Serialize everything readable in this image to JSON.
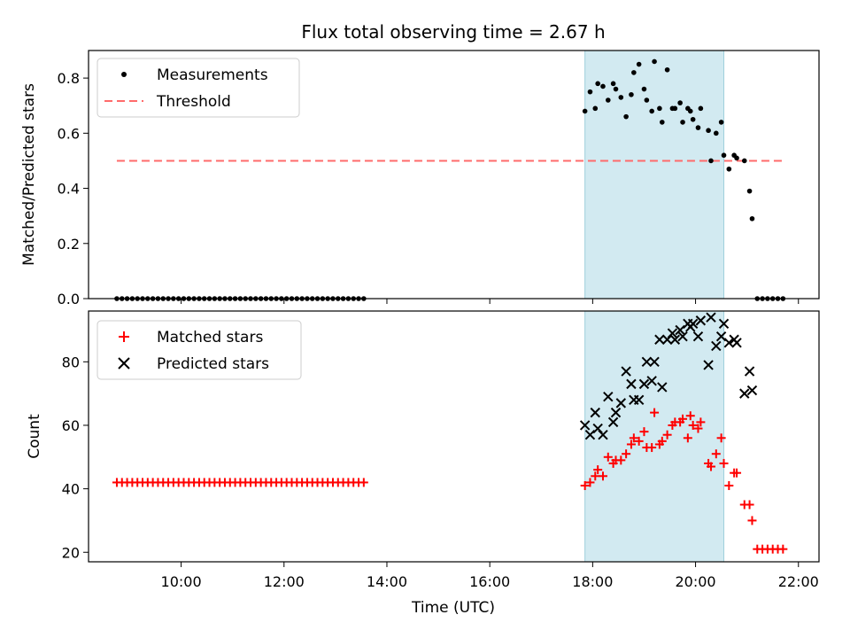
{
  "title": "Flux total observing time = 2.67 h",
  "xlabel": "Time (UTC)",
  "x_ticks": [
    "10:00",
    "12:00",
    "14:00",
    "16:00",
    "18:00",
    "20:00",
    "22:00"
  ],
  "x_tick_hours": [
    10,
    12,
    14,
    16,
    18,
    20,
    22
  ],
  "x_range_hours": [
    8.2,
    22.4
  ],
  "shaded_interval_hours": [
    17.85,
    20.55
  ],
  "colors": {
    "shade": "#add8e6",
    "threshold": "#ff6b6b",
    "matched": "#ff0000",
    "predicted": "#000000",
    "measurement": "#000000"
  },
  "chart_data": [
    {
      "type": "scatter",
      "ylabel": "Matched/Predicted stars",
      "ylim": [
        0,
        0.9
      ],
      "y_ticks": [
        "0.0",
        "0.2",
        "0.4",
        "0.6",
        "0.8"
      ],
      "y_tick_values": [
        0,
        0.2,
        0.4,
        0.6,
        0.8
      ],
      "legend": {
        "placement": "top-left",
        "entries": [
          "Measurements",
          "Threshold"
        ]
      },
      "threshold": {
        "name": "Threshold",
        "y": 0.5,
        "x_range_hours": [
          8.75,
          21.75
        ]
      },
      "series": [
        {
          "name": "Measurements",
          "x": [
            8.75,
            8.85,
            8.95,
            9.05,
            9.15,
            9.25,
            9.35,
            9.45,
            9.55,
            9.65,
            9.75,
            9.85,
            9.95,
            10.05,
            10.15,
            10.25,
            10.35,
            10.45,
            10.55,
            10.65,
            10.75,
            10.85,
            10.95,
            11.05,
            11.15,
            11.25,
            11.35,
            11.45,
            11.55,
            11.65,
            11.75,
            11.85,
            11.95,
            12.05,
            12.15,
            12.25,
            12.35,
            12.45,
            12.55,
            12.65,
            12.75,
            12.85,
            12.95,
            13.05,
            13.15,
            13.25,
            13.35,
            13.45,
            13.55,
            17.85,
            17.95,
            18.05,
            18.1,
            18.2,
            18.3,
            18.4,
            18.45,
            18.55,
            18.65,
            18.75,
            18.8,
            18.9,
            19.0,
            19.05,
            19.15,
            19.2,
            19.3,
            19.35,
            19.45,
            19.55,
            19.6,
            19.7,
            19.75,
            19.85,
            19.9,
            19.95,
            20.05,
            20.1,
            20.25,
            20.3,
            20.4,
            20.5,
            20.55,
            20.65,
            20.75,
            20.8,
            20.95,
            21.05,
            21.1,
            21.2,
            21.3,
            21.4,
            21.5,
            21.6,
            21.7
          ],
          "y": [
            0,
            0,
            0,
            0,
            0,
            0,
            0,
            0,
            0,
            0,
            0,
            0,
            0,
            0,
            0,
            0,
            0,
            0,
            0,
            0,
            0,
            0,
            0,
            0,
            0,
            0,
            0,
            0,
            0,
            0,
            0,
            0,
            0,
            0,
            0,
            0,
            0,
            0,
            0,
            0,
            0,
            0,
            0,
            0,
            0,
            0,
            0,
            0,
            0,
            0.68,
            0.75,
            0.69,
            0.78,
            0.77,
            0.72,
            0.78,
            0.76,
            0.73,
            0.66,
            0.74,
            0.82,
            0.85,
            0.76,
            0.72,
            0.68,
            0.86,
            0.69,
            0.64,
            0.83,
            0.69,
            0.69,
            0.71,
            0.64,
            0.69,
            0.68,
            0.65,
            0.62,
            0.69,
            0.61,
            0.5,
            0.6,
            0.64,
            0.52,
            0.47,
            0.52,
            0.51,
            0.5,
            0.39,
            0.29,
            0,
            0,
            0,
            0,
            0,
            0
          ]
        }
      ]
    },
    {
      "type": "scatter",
      "ylabel": "Count",
      "ylim": [
        17,
        96
      ],
      "y_ticks": [
        "20",
        "40",
        "60",
        "80"
      ],
      "y_tick_values": [
        20,
        40,
        60,
        80
      ],
      "legend": {
        "placement": "top-left",
        "entries": [
          "Matched stars",
          "Predicted stars"
        ]
      },
      "series": [
        {
          "name": "Matched stars",
          "x": [
            8.75,
            8.85,
            8.95,
            9.05,
            9.15,
            9.25,
            9.35,
            9.45,
            9.55,
            9.65,
            9.75,
            9.85,
            9.95,
            10.05,
            10.15,
            10.25,
            10.35,
            10.45,
            10.55,
            10.65,
            10.75,
            10.85,
            10.95,
            11.05,
            11.15,
            11.25,
            11.35,
            11.45,
            11.55,
            11.65,
            11.75,
            11.85,
            11.95,
            12.05,
            12.15,
            12.25,
            12.35,
            12.45,
            12.55,
            12.65,
            12.75,
            12.85,
            12.95,
            13.05,
            13.15,
            13.25,
            13.35,
            13.45,
            13.55,
            17.85,
            17.95,
            18.05,
            18.1,
            18.2,
            18.3,
            18.4,
            18.45,
            18.55,
            18.65,
            18.75,
            18.8,
            18.9,
            19.0,
            19.05,
            19.15,
            19.2,
            19.3,
            19.35,
            19.45,
            19.55,
            19.6,
            19.7,
            19.75,
            19.85,
            19.9,
            19.95,
            20.05,
            20.1,
            20.25,
            20.3,
            20.4,
            20.5,
            20.55,
            20.65,
            20.75,
            20.8,
            20.95,
            21.05,
            21.1,
            21.2,
            21.3,
            21.4,
            21.5,
            21.6,
            21.7
          ],
          "y": [
            42,
            42,
            42,
            42,
            42,
            42,
            42,
            42,
            42,
            42,
            42,
            42,
            42,
            42,
            42,
            42,
            42,
            42,
            42,
            42,
            42,
            42,
            42,
            42,
            42,
            42,
            42,
            42,
            42,
            42,
            42,
            42,
            42,
            42,
            42,
            42,
            42,
            42,
            42,
            42,
            42,
            42,
            42,
            42,
            42,
            42,
            42,
            42,
            42,
            41,
            42,
            44,
            46,
            44,
            50,
            48,
            49,
            49,
            51,
            54,
            56,
            55,
            58,
            53,
            53,
            64,
            54,
            55,
            57,
            60,
            61,
            61,
            62,
            56,
            63,
            60,
            59,
            61,
            48,
            47,
            51,
            56,
            48,
            41,
            45,
            45,
            35,
            35,
            30,
            21,
            21,
            21,
            21,
            21,
            21
          ]
        },
        {
          "name": "Predicted stars",
          "x": [
            17.85,
            17.95,
            18.05,
            18.1,
            18.2,
            18.3,
            18.4,
            18.45,
            18.55,
            18.65,
            18.75,
            18.8,
            18.9,
            19.0,
            19.05,
            19.15,
            19.2,
            19.3,
            19.35,
            19.45,
            19.55,
            19.6,
            19.7,
            19.75,
            19.85,
            19.9,
            19.95,
            20.05,
            20.1,
            20.25,
            20.3,
            20.4,
            20.5,
            20.55,
            20.65,
            20.75,
            20.8,
            20.95,
            21.05,
            21.1
          ],
          "y": [
            60,
            57,
            64,
            59,
            57,
            69,
            61,
            64,
            67,
            77,
            73,
            68,
            68,
            73,
            80,
            74,
            80,
            87,
            72,
            87,
            89,
            87,
            90,
            88,
            92,
            91,
            92,
            88,
            93,
            79,
            94,
            85,
            88,
            92,
            86,
            87,
            86,
            70,
            77,
            71
          ]
        }
      ]
    }
  ]
}
